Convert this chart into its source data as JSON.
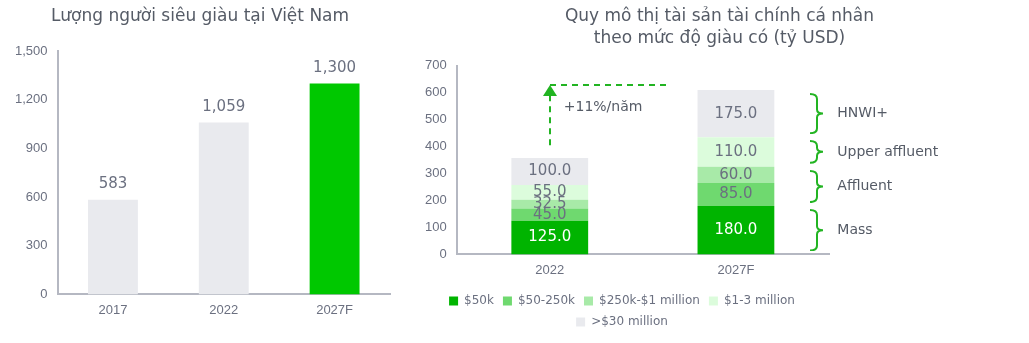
{
  "chart_data": [
    {
      "type": "bar",
      "title": "Lượng người siêu giàu tại Việt Nam",
      "categories": [
        "2017",
        "2022",
        "2027F"
      ],
      "values": [
        583,
        1059,
        1300
      ],
      "colors": [
        "#e9eaee",
        "#e9eaee",
        "#00c800"
      ],
      "value_labels": [
        "583",
        "1,059",
        "1,300"
      ],
      "ylim": [
        0,
        1500
      ],
      "yticks": [
        0,
        300,
        600,
        900,
        {
          "value": 1200,
          "label": "1,200"
        },
        {
          "value": 1500,
          "label": "1,500"
        }
      ],
      "grid": false,
      "legend": false
    },
    {
      "type": "bar",
      "stacked": true,
      "title": "Quy mô thị tài sản tài chính cá nhân theo mức độ giàu có (tỷ USD)",
      "categories": [
        "2022",
        "2027F"
      ],
      "series": [
        {
          "name": "$50k",
          "color": "#00b400",
          "values": [
            125,
            180
          ],
          "value_labels": [
            "125.0",
            "180.0"
          ]
        },
        {
          "name": "$50-250k",
          "color": "#6fd96f",
          "values": [
            45,
            85
          ],
          "value_labels": [
            "45.0",
            "85.0"
          ]
        },
        {
          "name": "$250k-$1 million",
          "color": "#a8eaa8",
          "values": [
            32.5,
            60
          ],
          "value_labels": [
            "32.5",
            "60.0"
          ]
        },
        {
          "name": "$1-3 million",
          "color": "#dcfcdc",
          "values": [
            55,
            110
          ],
          "value_labels": [
            "55.0",
            "110.0"
          ]
        },
        {
          "name": ">$30 million",
          "color": "#e9eaee",
          "values": [
            100,
            175
          ],
          "value_labels": [
            "100.0",
            "175.0"
          ]
        }
      ],
      "ylim": [
        0,
        700
      ],
      "yticks": [
        0,
        100,
        200,
        300,
        400,
        500,
        600,
        700
      ],
      "grid": false,
      "legend": "bottom",
      "annotations": [
        "+11%/năm",
        "Mass",
        "Affluent",
        "Upper affluent",
        "HNWI+"
      ]
    }
  ]
}
